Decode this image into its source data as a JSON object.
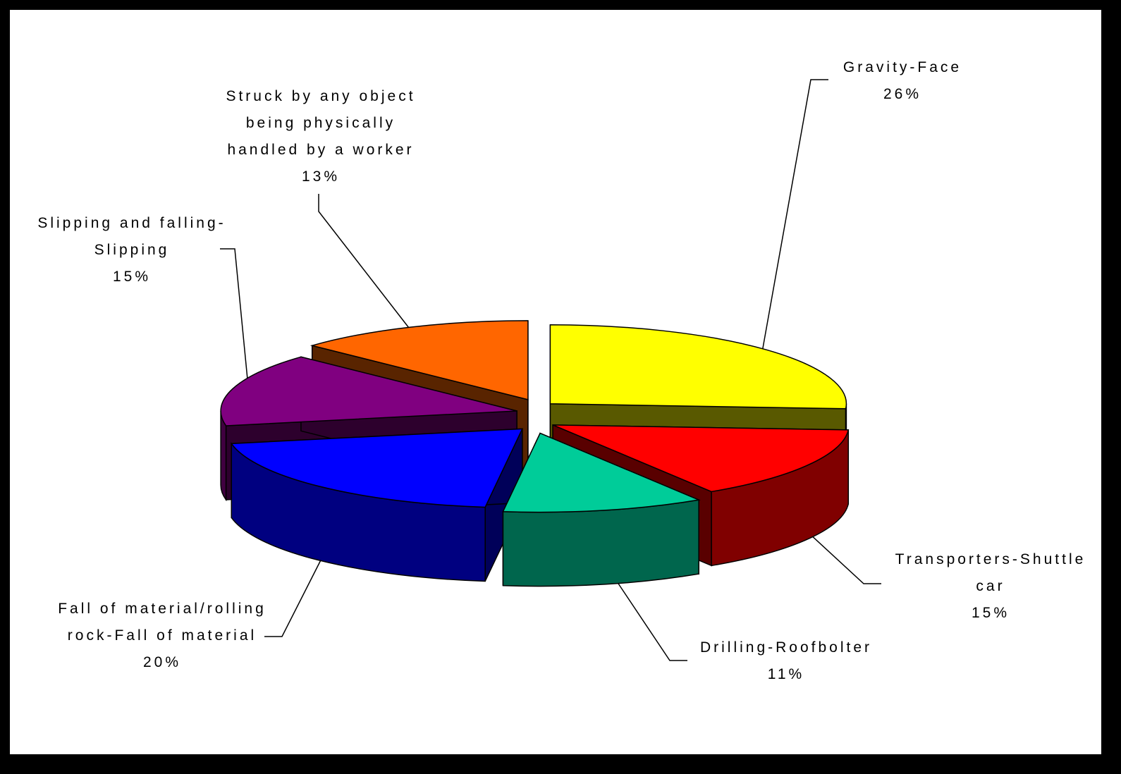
{
  "chart_data": {
    "type": "pie",
    "three_d": true,
    "exploded": true,
    "title": "",
    "slices": [
      {
        "label": "Gravity-Face",
        "lines": [
          "Gravity-Face"
        ],
        "value": 26,
        "value_label": "26%",
        "color": "#FFFF00"
      },
      {
        "label": "Transporters-Shuttle car",
        "lines": [
          "Transporters-Shuttle",
          "car"
        ],
        "value": 15,
        "value_label": "15%",
        "color": "#FF0000"
      },
      {
        "label": "Drilling-Roofbolter",
        "lines": [
          "Drilling-Roofbolter"
        ],
        "value": 11,
        "value_label": "11%",
        "color": "#00CC99"
      },
      {
        "label": "Fall of material/rolling rock-Fall of material",
        "lines": [
          "Fall of material/rolling",
          "rock-Fall of material"
        ],
        "value": 20,
        "value_label": "20%",
        "color": "#0000FF"
      },
      {
        "label": "Slipping and falling-Slipping",
        "lines": [
          "Slipping and falling-",
          "Slipping"
        ],
        "value": 15,
        "value_label": "15%",
        "color": "#800080"
      },
      {
        "label": "Struck by any object being physically handled by a worker",
        "lines": [
          "Struck by any object",
          "being physically",
          "handled by a worker"
        ],
        "value": 13,
        "value_label": "13%",
        "color": "#FF6600"
      }
    ]
  }
}
